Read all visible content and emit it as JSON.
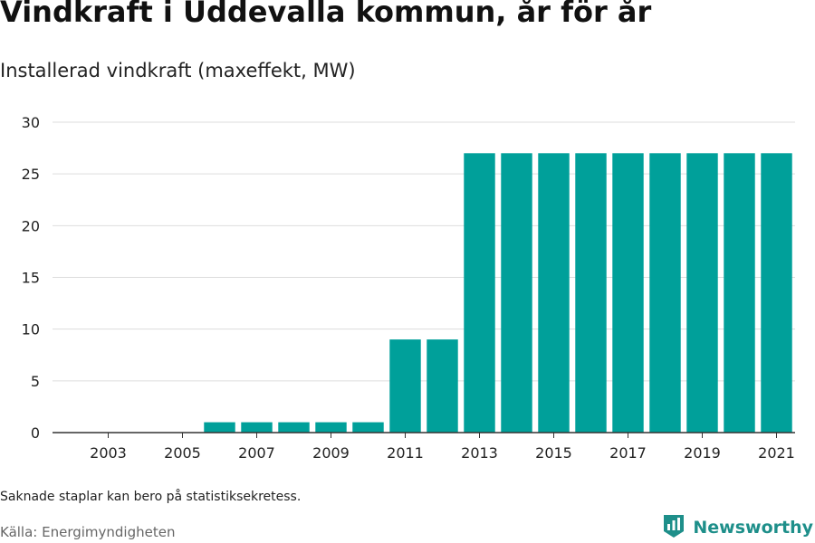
{
  "title": "Vindkraft i Uddevalla kommun, år för år",
  "subtitle": "Installerad vindkraft (maxeffekt, MW)",
  "note": "Saknade staplar kan bero på statistiksekretess.",
  "source": "Källa: Energimyndigheten",
  "brand": {
    "name": "Newsworthy",
    "icon": "newsworthy-logo-icon",
    "color": "#1e8f8a"
  },
  "colors": {
    "bar": "#00a09a",
    "grid": "#dddddd",
    "axis": "#333333"
  },
  "chart_data": {
    "type": "bar",
    "categories": [
      "2002",
      "2003",
      "2004",
      "2005",
      "2006",
      "2007",
      "2008",
      "2009",
      "2010",
      "2011",
      "2012",
      "2013",
      "2014",
      "2015",
      "2016",
      "2017",
      "2018",
      "2019",
      "2020",
      "2021"
    ],
    "values": [
      null,
      null,
      null,
      null,
      1,
      1,
      1,
      1,
      1,
      9,
      9,
      27,
      27,
      27,
      27,
      27,
      27,
      27,
      27,
      27
    ],
    "x_tick_labels": [
      "2003",
      "2005",
      "2007",
      "2009",
      "2011",
      "2013",
      "2015",
      "2017",
      "2019",
      "2021"
    ],
    "y_ticks": [
      0,
      5,
      10,
      15,
      20,
      25,
      30
    ],
    "ylim": [
      0,
      30
    ],
    "xlabel": "",
    "ylabel": "",
    "grid": "horizontal",
    "legend": "none"
  }
}
